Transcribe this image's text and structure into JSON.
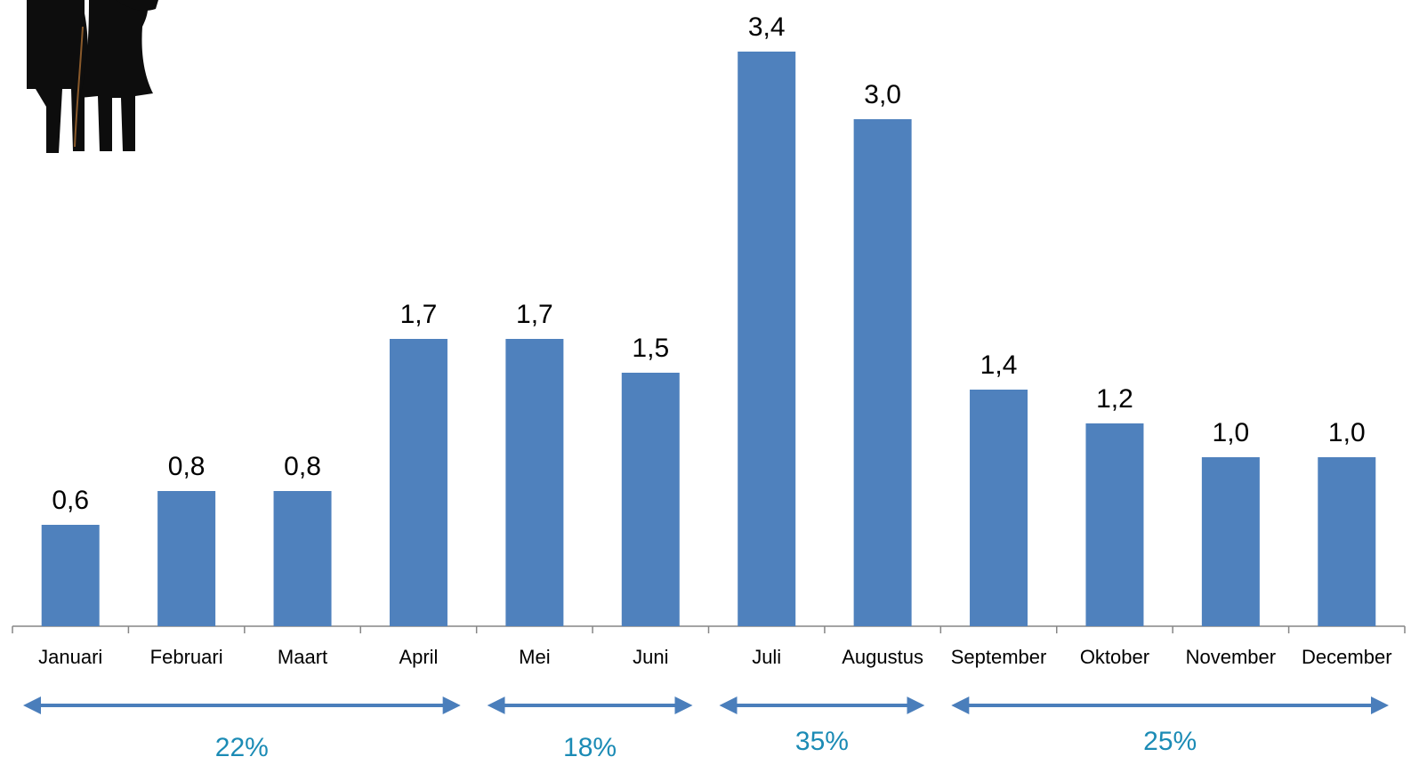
{
  "chart_data": {
    "type": "bar",
    "categories": [
      "Januari",
      "Februari",
      "Maart",
      "April",
      "Mei",
      "Juni",
      "Juli",
      "Augustus",
      "September",
      "Oktober",
      "November",
      "December"
    ],
    "values": [
      0.6,
      0.8,
      0.8,
      1.7,
      1.7,
      1.5,
      3.4,
      3.0,
      1.4,
      1.2,
      1.0,
      1.0
    ],
    "value_labels": [
      "0,6",
      "0,8",
      "0,8",
      "1,7",
      "1,7",
      "1,5",
      "3,4",
      "3,0",
      "1,4",
      "1,2",
      "1,0",
      "1,0"
    ],
    "ylim": [
      0,
      3.6
    ],
    "grid": false,
    "bar_color": "#4f81bd",
    "periods": [
      {
        "label": "22%",
        "from": "Januari",
        "to": "April"
      },
      {
        "label": "18%",
        "from": "Mei",
        "to": "Juni"
      },
      {
        "label": "35%",
        "from": "Juli",
        "to": "Augustus"
      },
      {
        "label": "25%",
        "from": "September",
        "to": "December"
      }
    ],
    "period_arrow_color": "#4a7ebb",
    "period_label_color": "#1b8bb5"
  },
  "icon": {
    "name": "couple-icon"
  }
}
